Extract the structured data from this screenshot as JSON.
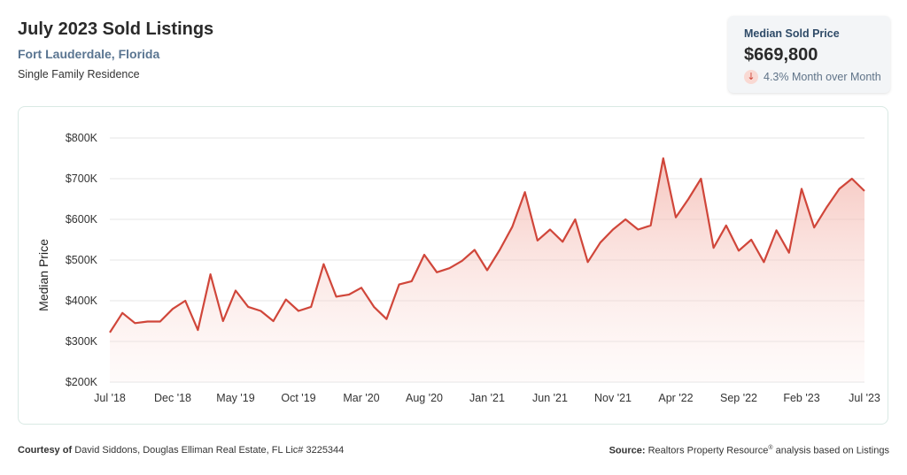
{
  "header": {
    "title": "July 2023 Sold Listings",
    "location": "Fort Lauderdale, Florida",
    "property_type": "Single Family Residence"
  },
  "stat_card": {
    "label": "Median Sold Price",
    "value": "$669,800",
    "change": "4.3% Month over Month",
    "direction_icon": "arrow-down-icon"
  },
  "colors": {
    "line": "#d0463a",
    "fill": "#f6c6bf",
    "grid": "#e6e6e6"
  },
  "chart_data": {
    "type": "area",
    "ylabel": "Median Price",
    "ylim": [
      200000,
      800000
    ],
    "y_ticks": [
      {
        "value": 200000,
        "label": "$200K"
      },
      {
        "value": 300000,
        "label": "$300K"
      },
      {
        "value": 400000,
        "label": "$400K"
      },
      {
        "value": 500000,
        "label": "$500K"
      },
      {
        "value": 600000,
        "label": "$600K"
      },
      {
        "value": 700000,
        "label": "$700K"
      },
      {
        "value": 800000,
        "label": "$800K"
      }
    ],
    "x_ticks": [
      {
        "index": 0,
        "label": "Jul '18"
      },
      {
        "index": 5,
        "label": "Dec '18"
      },
      {
        "index": 10,
        "label": "May '19"
      },
      {
        "index": 15,
        "label": "Oct '19"
      },
      {
        "index": 20,
        "label": "Mar '20"
      },
      {
        "index": 25,
        "label": "Aug '20"
      },
      {
        "index": 30,
        "label": "Jan '21"
      },
      {
        "index": 35,
        "label": "Jun '21"
      },
      {
        "index": 40,
        "label": "Nov '21"
      },
      {
        "index": 45,
        "label": "Apr '22"
      },
      {
        "index": 50,
        "label": "Sep '22"
      },
      {
        "index": 55,
        "label": "Feb '23"
      },
      {
        "index": 60,
        "label": "Jul '23"
      }
    ],
    "grid": true,
    "series": [
      {
        "values": [
          322000,
          370000,
          345000,
          349000,
          349000,
          380000,
          400000,
          328000,
          465000,
          350000,
          425000,
          385000,
          375000,
          350000,
          403000,
          375000,
          385000,
          490000,
          410000,
          415000,
          432000,
          385000,
          355000,
          440000,
          448000,
          513000,
          470000,
          480000,
          498000,
          525000,
          475000,
          525000,
          582000,
          667000,
          548000,
          575000,
          545000,
          600000,
          495000,
          543000,
          575000,
          600000,
          575000,
          585000,
          750000,
          605000,
          650000,
          700000,
          530000,
          585000,
          523000,
          550000,
          495000,
          573000,
          518000,
          675000,
          580000,
          630000,
          675000,
          700000,
          669800
        ]
      }
    ]
  },
  "footer": {
    "courtesy_label": "Courtesy of",
    "courtesy_text": "David Siddons, Douglas Elliman Real Estate, FL Lic# 3225344",
    "source_label": "Source:",
    "source_text": "Realtors Property Resource",
    "source_mark": "®",
    "source_suffix": "analysis based on Listings"
  }
}
